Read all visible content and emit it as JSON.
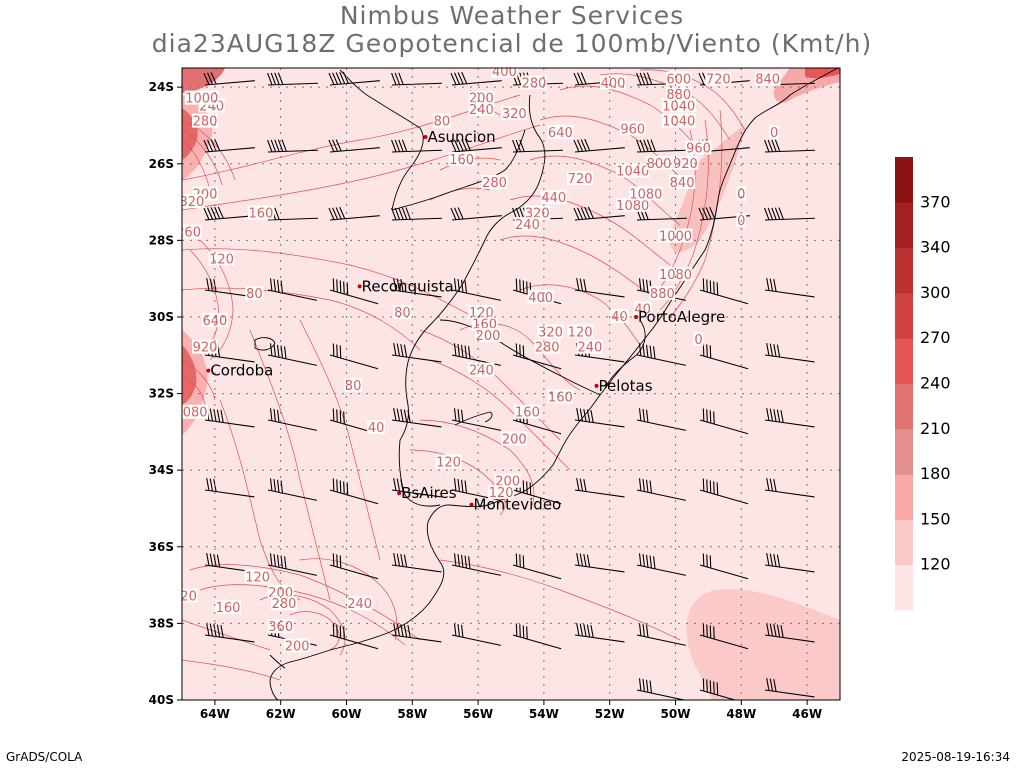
{
  "header": {
    "title_line1": "Nimbus Weather Services",
    "title_line2": "dia23AUG18Z Geopotencial de 100mb/Viento (Kmt/h)"
  },
  "footer": {
    "left": "GrADS/COLA",
    "right": "2025-08-19-16:34"
  },
  "map": {
    "lon_range": [
      -65,
      -45
    ],
    "lat_range": [
      -40,
      -23.5
    ],
    "lon_ticks": [
      {
        "lon": -64,
        "label": "64W"
      },
      {
        "lon": -62,
        "label": "62W"
      },
      {
        "lon": -60,
        "label": "60W"
      },
      {
        "lon": -58,
        "label": "58W"
      },
      {
        "lon": -56,
        "label": "56W"
      },
      {
        "lon": -54,
        "label": "54W"
      },
      {
        "lon": -52,
        "label": "52W"
      },
      {
        "lon": -50,
        "label": "50W"
      },
      {
        "lon": -48,
        "label": "48W"
      },
      {
        "lon": -46,
        "label": "46W"
      }
    ],
    "lat_ticks": [
      {
        "lat": -24,
        "label": "24S"
      },
      {
        "lat": -26,
        "label": "26S"
      },
      {
        "lat": -28,
        "label": "28S"
      },
      {
        "lat": -30,
        "label": "30S"
      },
      {
        "lat": -32,
        "label": "32S"
      },
      {
        "lat": -34,
        "label": "34S"
      },
      {
        "lat": -36,
        "label": "36S"
      },
      {
        "lat": -38,
        "label": "38S"
      },
      {
        "lat": -40,
        "label": "40S"
      }
    ],
    "cities": [
      {
        "name": "Asuncion",
        "lon": -57.6,
        "lat": -25.3
      },
      {
        "name": "Reconquista",
        "lon": -59.6,
        "lat": -29.2
      },
      {
        "name": "Cordoba",
        "lon": -64.2,
        "lat": -31.4
      },
      {
        "name": "PortoAlegre",
        "lon": -51.2,
        "lat": -30.0
      },
      {
        "name": "Pelotas",
        "lon": -52.4,
        "lat": -31.8
      },
      {
        "name": "BsAires",
        "lon": -58.4,
        "lat": -34.6
      },
      {
        "name": "Montevideo",
        "lon": -56.2,
        "lat": -34.9
      }
    ],
    "contour_labels": [
      {
        "v": "240",
        "lon": -64.1,
        "lat": -24.5
      },
      {
        "v": "280",
        "lon": -64.3,
        "lat": -24.9
      },
      {
        "v": "1000",
        "lon": -64.4,
        "lat": -24.3
      },
      {
        "v": "200",
        "lon": -64.3,
        "lat": -26.8
      },
      {
        "v": "160",
        "lon": -62.6,
        "lat": -27.3
      },
      {
        "v": "120",
        "lon": -63.8,
        "lat": -28.5
      },
      {
        "v": "80",
        "lon": -62.8,
        "lat": -29.4
      },
      {
        "v": "640",
        "lon": -64.0,
        "lat": -30.1
      },
      {
        "v": "920",
        "lon": -64.3,
        "lat": -30.8
      },
      {
        "v": "80",
        "lon": -58.3,
        "lat": -29.9
      },
      {
        "v": "80",
        "lon": -59.8,
        "lat": -31.8
      },
      {
        "v": "40",
        "lon": -59.1,
        "lat": -32.9
      },
      {
        "v": "80",
        "lon": -57.1,
        "lat": -24.9
      },
      {
        "v": "200",
        "lon": -55.9,
        "lat": -24.3
      },
      {
        "v": "240",
        "lon": -55.9,
        "lat": -24.6
      },
      {
        "v": "320",
        "lon": -54.9,
        "lat": -24.7
      },
      {
        "v": "400",
        "lon": -55.2,
        "lat": -23.6
      },
      {
        "v": "280",
        "lon": -54.3,
        "lat": -23.9
      },
      {
        "v": "160",
        "lon": -56.5,
        "lat": -25.9
      },
      {
        "v": "280",
        "lon": -55.5,
        "lat": -26.5
      },
      {
        "v": "640",
        "lon": -53.5,
        "lat": -25.2
      },
      {
        "v": "720",
        "lon": -52.9,
        "lat": -26.4
      },
      {
        "v": "440",
        "lon": -53.7,
        "lat": -26.9
      },
      {
        "v": "320",
        "lon": -54.2,
        "lat": -27.3
      },
      {
        "v": "240",
        "lon": -54.5,
        "lat": -27.6
      },
      {
        "v": "400",
        "lon": -51.9,
        "lat": -23.9
      },
      {
        "v": "960",
        "lon": -51.3,
        "lat": -25.1
      },
      {
        "v": "1040",
        "lon": -51.3,
        "lat": -26.2
      },
      {
        "v": "800",
        "lon": -50.5,
        "lat": -26.0
      },
      {
        "v": "920",
        "lon": -49.7,
        "lat": -26.0
      },
      {
        "v": "960",
        "lon": -49.3,
        "lat": -25.6
      },
      {
        "v": "840",
        "lon": -49.8,
        "lat": -26.5
      },
      {
        "v": "1080",
        "lon": -51.3,
        "lat": -27.1
      },
      {
        "v": "1080",
        "lon": -50.9,
        "lat": -26.8
      },
      {
        "v": "1040",
        "lon": -49.9,
        "lat": -24.5
      },
      {
        "v": "1040",
        "lon": -49.9,
        "lat": -24.9
      },
      {
        "v": "880",
        "lon": -49.9,
        "lat": -24.2
      },
      {
        "v": "720",
        "lon": -48.7,
        "lat": -23.8
      },
      {
        "v": "600",
        "lon": -49.9,
        "lat": -23.8
      },
      {
        "v": "840",
        "lon": -47.2,
        "lat": -23.8
      },
      {
        "v": "1000",
        "lon": -50.0,
        "lat": -27.9
      },
      {
        "v": "1080",
        "lon": -50.0,
        "lat": -28.9
      },
      {
        "v": "880",
        "lon": -50.4,
        "lat": -29.4
      },
      {
        "v": "0",
        "lon": -47.0,
        "lat": -25.2
      },
      {
        "v": "0",
        "lon": -48.0,
        "lat": -26.8
      },
      {
        "v": "0",
        "lon": -48.0,
        "lat": -27.5
      },
      {
        "v": "0",
        "lon": -49.3,
        "lat": -30.6
      },
      {
        "v": "40",
        "lon": -51.7,
        "lat": -30.0
      },
      {
        "v": "40",
        "lon": -51.0,
        "lat": -29.8
      },
      {
        "v": "400",
        "lon": -54.1,
        "lat": -29.5
      },
      {
        "v": "120",
        "lon": -55.9,
        "lat": -29.9
      },
      {
        "v": "160",
        "lon": -55.8,
        "lat": -30.2
      },
      {
        "v": "200",
        "lon": -55.7,
        "lat": -30.5
      },
      {
        "v": "280",
        "lon": -53.9,
        "lat": -30.8
      },
      {
        "v": "320",
        "lon": -53.8,
        "lat": -30.4
      },
      {
        "v": "120",
        "lon": -52.9,
        "lat": -30.4
      },
      {
        "v": "240",
        "lon": -52.6,
        "lat": -30.8
      },
      {
        "v": "240",
        "lon": -55.9,
        "lat": -31.4
      },
      {
        "v": "160",
        "lon": -54.5,
        "lat": -32.5
      },
      {
        "v": "160",
        "lon": -53.5,
        "lat": -32.1
      },
      {
        "v": "200",
        "lon": -54.9,
        "lat": -33.2
      },
      {
        "v": "120",
        "lon": -56.9,
        "lat": -33.8
      },
      {
        "v": "200",
        "lon": -55.1,
        "lat": -34.3
      },
      {
        "v": "120",
        "lon": -55.3,
        "lat": -34.6
      },
      {
        "v": "120",
        "lon": -62.7,
        "lat": -36.8
      },
      {
        "v": "160",
        "lon": -63.6,
        "lat": -37.6
      },
      {
        "v": "200",
        "lon": -62.0,
        "lat": -37.2
      },
      {
        "v": "280",
        "lon": -61.9,
        "lat": -37.5
      },
      {
        "v": "240",
        "lon": -59.6,
        "lat": -37.5
      },
      {
        "v": "360",
        "lon": -62.0,
        "lat": -38.1
      },
      {
        "v": "200",
        "lon": -61.5,
        "lat": -38.6
      },
      {
        "v": "20",
        "lon": -64.8,
        "lat": -37.3
      },
      {
        "v": "080",
        "lon": -64.6,
        "lat": -32.5
      },
      {
        "v": "320",
        "lon": -64.7,
        "lat": -27.0
      },
      {
        "v": "260",
        "lon": -64.8,
        "lat": -27.8
      }
    ]
  },
  "colorbar": {
    "labels": [
      "120",
      "150",
      "180",
      "210",
      "240",
      "270",
      "300",
      "340",
      "370"
    ],
    "colors": [
      "#fde5e5",
      "#fcc9c9",
      "#f9a7a7",
      "#e58e8e",
      "#e37373",
      "#e85555",
      "#d14141",
      "#bb3030",
      "#a41f1f",
      "#8b1313"
    ]
  }
}
